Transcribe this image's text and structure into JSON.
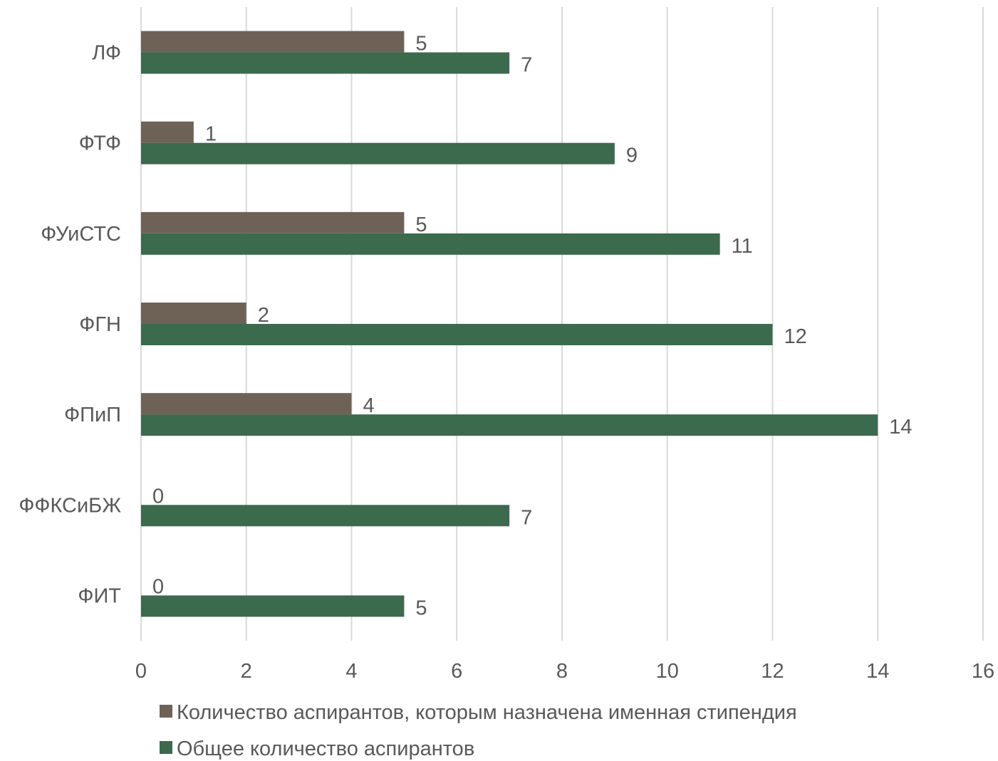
{
  "chart_data": {
    "type": "bar",
    "orientation": "horizontal",
    "title": "",
    "xlabel": "",
    "ylabel": "",
    "categories": [
      "ЛФ",
      "ФТФ",
      "ФУиСТС",
      "ФГН",
      "ФПиП",
      "ФФКСиБЖ",
      "ФИТ"
    ],
    "series": [
      {
        "name": "Количество аспирантов, которым назначена именная стипендия",
        "color": "#6e6256",
        "values": [
          5,
          1,
          5,
          2,
          4,
          0,
          0
        ]
      },
      {
        "name": "Общее количество аспирантов",
        "color": "#3b6a4c",
        "values": [
          7,
          9,
          11,
          12,
          14,
          7,
          5
        ]
      }
    ],
    "xlim": [
      0,
      16
    ],
    "xticks": [
      "0",
      "2",
      "4",
      "6",
      "8",
      "10",
      "12",
      "14",
      "16"
    ],
    "grid": true,
    "legend_position": "bottom",
    "data_labels": true
  }
}
